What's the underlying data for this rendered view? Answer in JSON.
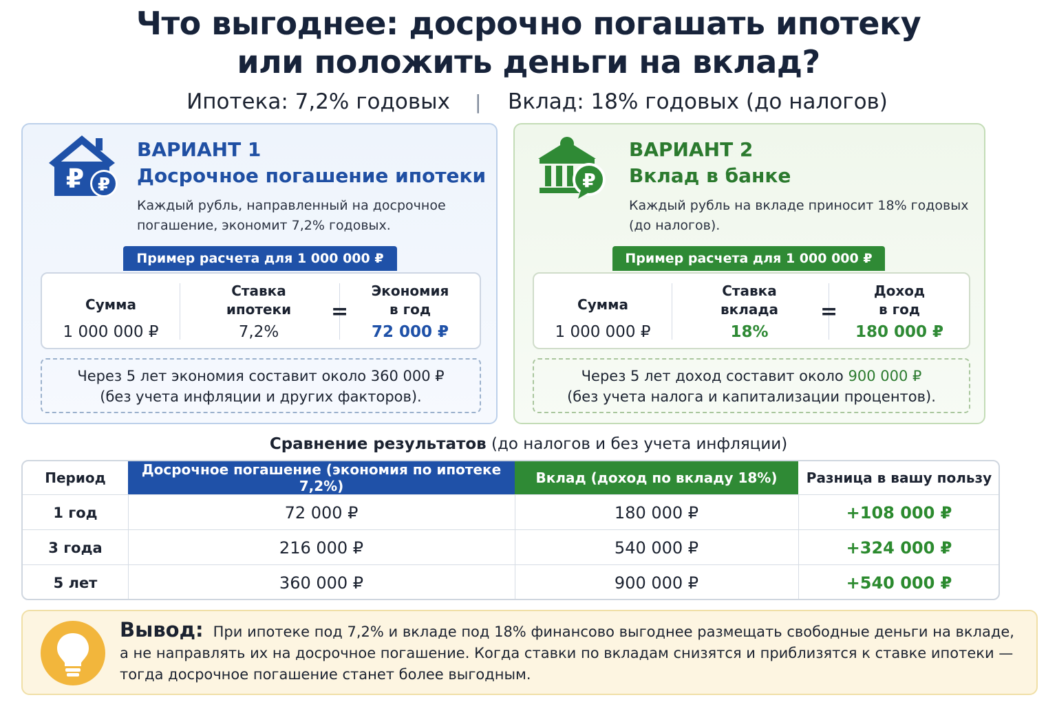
{
  "title_line1": "Что выгоднее: досрочно погашать ипотеку",
  "title_line2": "или положить деньги на вклад?",
  "rates": {
    "mortgage": "Ипотека: 7,2% годовых",
    "separator": "|",
    "deposit": "Вклад: 18% годовых (до налогов)"
  },
  "option1": {
    "icon": "house-ruble-icon",
    "label": "ВАРИАНТ 1",
    "title": "Досрочное погашение ипотеки",
    "desc": "Каждый рубль, направленный на досрочное погашение, экономит 7,2% годовых.",
    "tag": "Пример расчета для 1 000 000 ₽",
    "calc": {
      "sum_label": "Сумма",
      "sum_value": "1 000 000 ₽",
      "rate_label_1": "Ставка",
      "rate_label_2": "ипотеки",
      "rate_value": "7,2%",
      "equals": "=",
      "result_label_1": "Экономия",
      "result_label_2": "в год",
      "result_value": "72 000 ₽"
    },
    "note_line1": "Через 5 лет экономия составит около 360 000 ₽",
    "note_line2": "(без учета инфляции и других факторов)."
  },
  "option2": {
    "icon": "bank-ruble-icon",
    "label": "ВАРИАНТ 2",
    "title": "Вклад в банке",
    "desc": "Каждый рубль на вкладе приносит 18% годовых (до налогов).",
    "tag": "Пример расчета для 1 000 000 ₽",
    "calc": {
      "sum_label": "Сумма",
      "sum_value": "1 000 000 ₽",
      "rate_label_1": "Ставка",
      "rate_label_2": "вклада",
      "rate_value": "18%",
      "equals": "=",
      "result_label_1": "Доход",
      "result_label_2": "в год",
      "result_value": "180 000 ₽"
    },
    "note_line1_prefix": "Через 5 лет доход составит около",
    "note_line1_value": "900 000 ₽",
    "note_line2": "(без учета налога и капитализации процентов)."
  },
  "comparison": {
    "title_bold": "Сравнение результатов",
    "title_rest": "(до налогов и без учета инфляции)",
    "headers": {
      "period": "Период",
      "early": "Досрочное погашение (экономия по ипотеке 7,2%)",
      "deposit": "Вклад (доход по вкладу 18%)",
      "diff": "Разница в вашу пользу"
    },
    "rows": [
      {
        "period": "1 год",
        "early": "72 000 ₽",
        "deposit": "180 000 ₽",
        "diff": "+108 000 ₽"
      },
      {
        "period": "3 года",
        "early": "216 000 ₽",
        "deposit": "540 000 ₽",
        "diff": "+324 000 ₽"
      },
      {
        "period": "5 лет",
        "early": "360 000 ₽",
        "deposit": "900 000 ₽",
        "diff": "+540 000 ₽"
      }
    ]
  },
  "conclusion": {
    "icon": "lightbulb-icon",
    "head": "Вывод:",
    "text": "При ипотеке под 7,2% и вкладе под 18% финансово выгоднее размещать свободные деньги на вкладе, а не направлять их на досрочное погашение. Когда ставки по вкладам снизятся и приблизятся к ставке ипотеки — тогда досрочное погашение станет более выгодным."
  },
  "colors": {
    "blue": "#1f51a8",
    "green": "#2f8a35",
    "diff_green": "#2b8a2e",
    "bulb": "#f2b63c"
  }
}
